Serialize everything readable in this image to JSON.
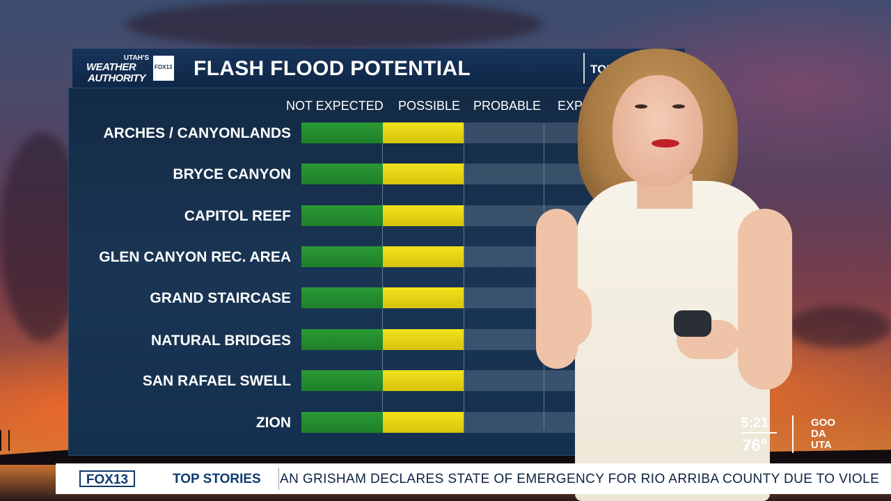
{
  "header": {
    "brand_top": "UTAH'S",
    "brand_line1": "WEATHER",
    "brand_line2": "AUTHORITY",
    "brand_badge": "FOX13",
    "title": "FLASH FLOOD POTENTIAL",
    "period": "TOD"
  },
  "columns": [
    "NOT EXPECTED",
    "POSSIBLE",
    "PROBABLE",
    "EXPECT"
  ],
  "colors": {
    "not_expected": "#1f7f2a",
    "possible": "#e8d816"
  },
  "rows": [
    {
      "label": "ARCHES / CANYONLANDS",
      "level": "POSSIBLE"
    },
    {
      "label": "BRYCE CANYON",
      "level": "POSSIBLE"
    },
    {
      "label": "CAPITOL REEF",
      "level": "POSSIBLE"
    },
    {
      "label": "GLEN CANYON REC. AREA",
      "level": "POSSIBLE"
    },
    {
      "label": "GRAND STAIRCASE",
      "level": "POSSIBLE"
    },
    {
      "label": "NATURAL BRIDGES",
      "level": "POSSIBLE"
    },
    {
      "label": "SAN RAFAEL SWELL",
      "level": "POSSIBLE"
    },
    {
      "label": "ZION",
      "level": "POSSIBLE"
    }
  ],
  "ticker": {
    "logo": "FOX13",
    "section": "TOP STORIES",
    "headline": "AN GRISHAM DECLARES STATE OF EMERGENCY FOR RIO ARRIBA COUNTY DUE TO VIOLE"
  },
  "bug": {
    "time": "5:21",
    "temperature": "76°",
    "show_line1": "GOO",
    "show_line2": "DA",
    "show_line3": "UTA"
  }
}
